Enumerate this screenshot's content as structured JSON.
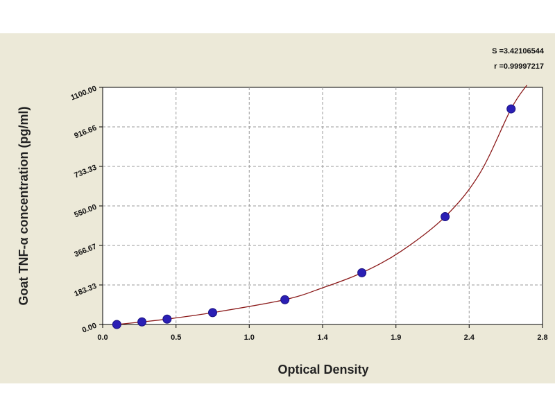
{
  "chart_data": {
    "type": "scatter",
    "title": "",
    "xlabel": "Optical Density",
    "ylabel": "Goat TNF-α concentration (pg/ml)",
    "xlim": [
      0.0,
      2.8
    ],
    "ylim": [
      0.0,
      1100.0
    ],
    "x_ticks": [
      "0.0",
      "0.5",
      "1.0",
      "1.4",
      "1.9",
      "2.4",
      "2.8"
    ],
    "x_tick_values": [
      0.0,
      0.467,
      0.933,
      1.4,
      1.867,
      2.333,
      2.8
    ],
    "y_ticks": [
      "0.00",
      "183.33",
      "366.67",
      "550.00",
      "733.33",
      "916.66",
      "1100.00"
    ],
    "y_tick_values": [
      0,
      183.33,
      366.67,
      550.0,
      733.33,
      916.66,
      1100.0
    ],
    "grid": true,
    "stats": {
      "s": "S =3.42106544",
      "r": "r =0.99997217"
    },
    "series": [
      {
        "color": "#2b1fb5",
        "x": [
          0.09,
          0.25,
          0.41,
          0.7,
          1.16,
          1.65,
          2.18,
          2.6
        ],
        "y": [
          0,
          12,
          25,
          55,
          115,
          240,
          500,
          1000
        ]
      }
    ],
    "fit_curve": {
      "color": "#8b1a1a",
      "x": [
        0.04,
        0.09,
        0.25,
        0.41,
        0.7,
        1.16,
        1.4,
        1.65,
        1.9,
        2.18,
        2.4,
        2.6,
        2.7
      ],
      "y": [
        -3,
        0,
        12,
        25,
        55,
        115,
        170,
        240,
        340,
        500,
        700,
        1000,
        1110
      ]
    }
  }
}
